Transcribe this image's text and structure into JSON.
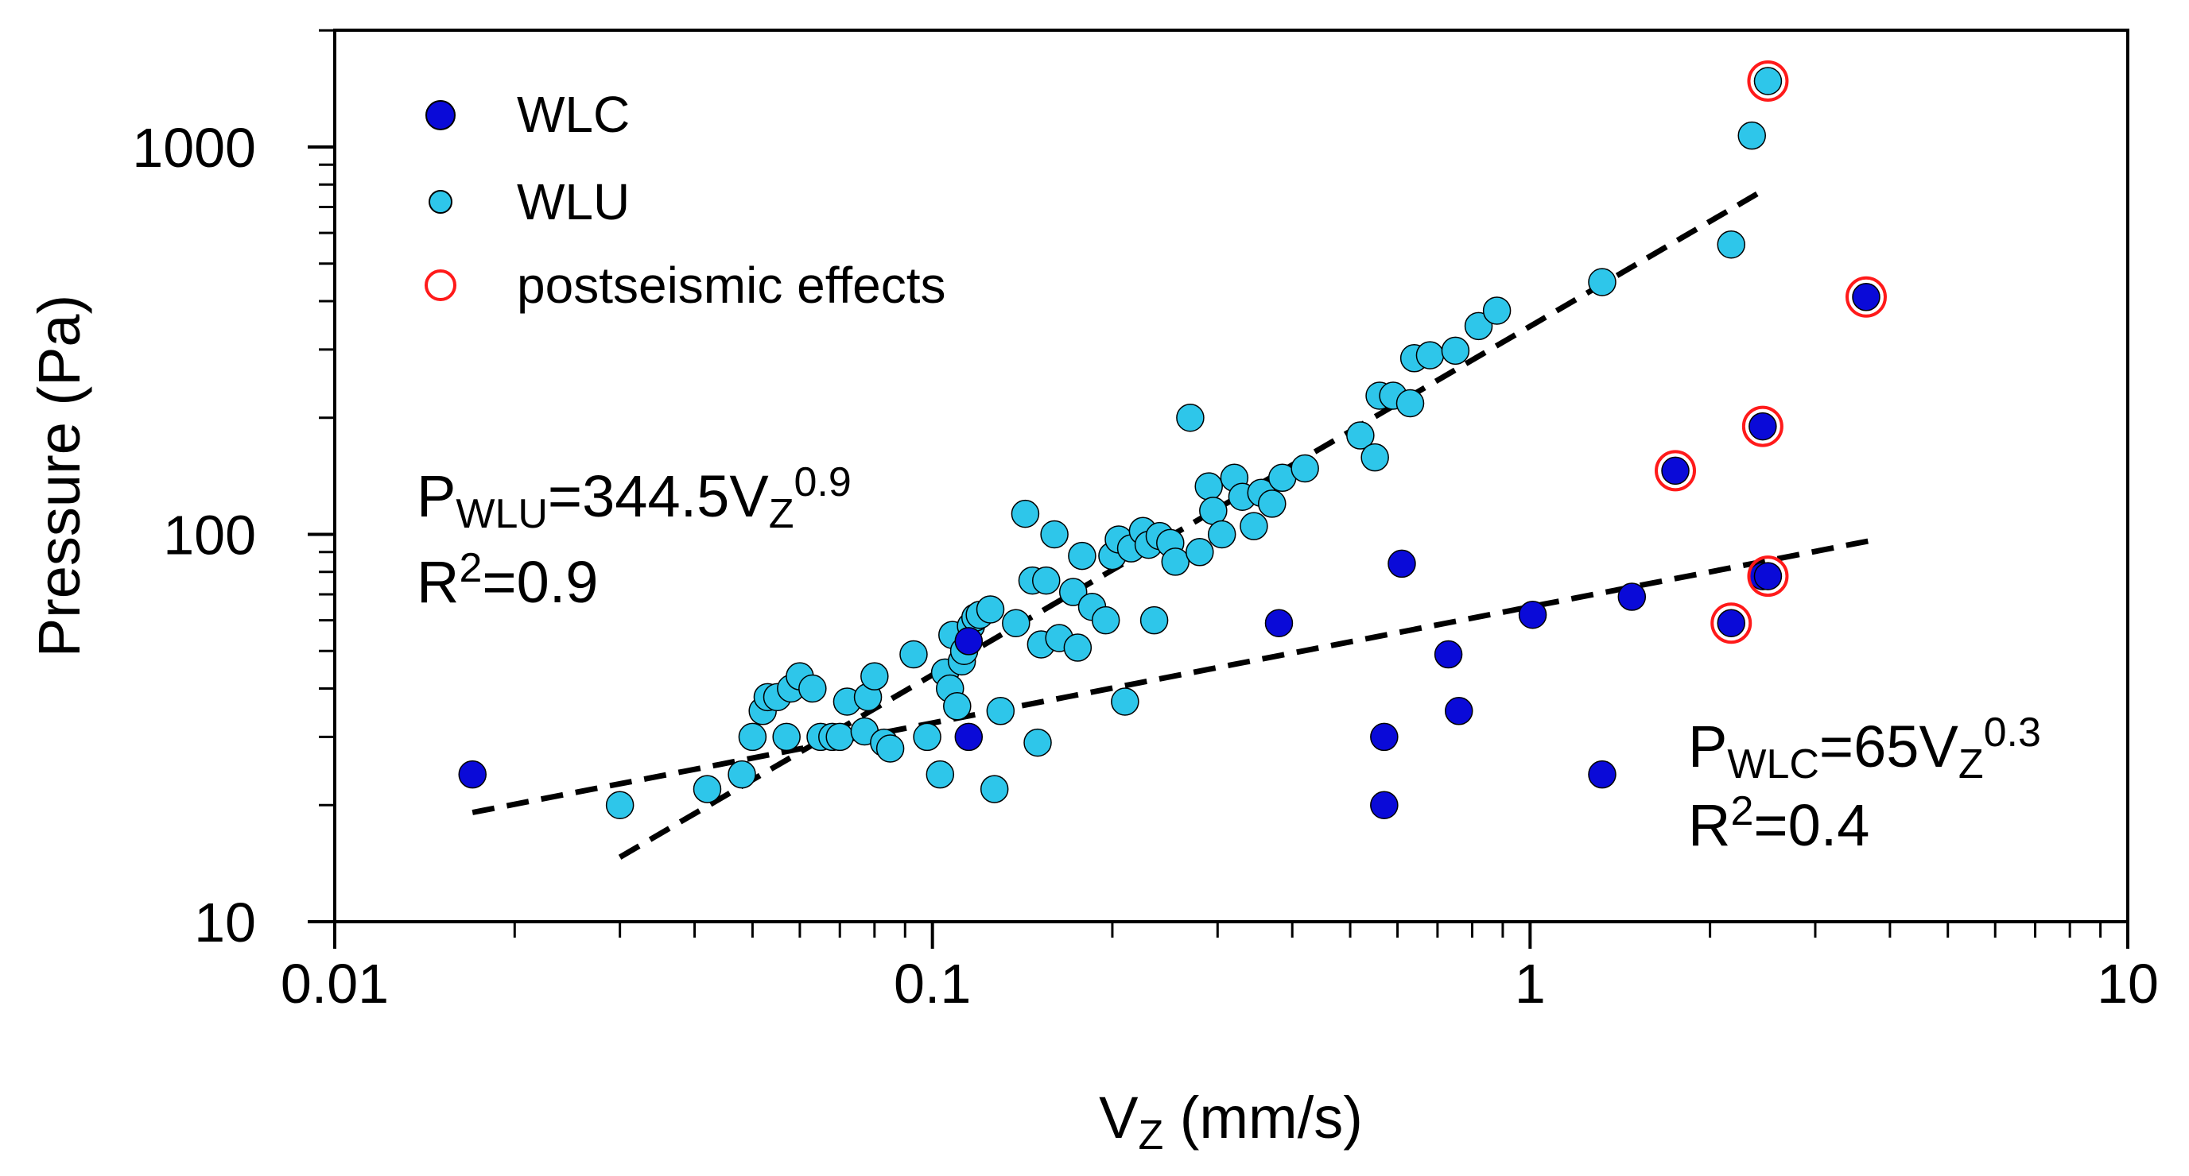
{
  "chart_data": {
    "type": "scatter",
    "x_scale": "log",
    "y_scale": "log",
    "xlim": [
      0.01,
      10
    ],
    "ylim": [
      10,
      2000
    ],
    "xlabel_main": "V",
    "xlabel_sub": "Z",
    "xlabel_unit": " (mm/s)",
    "ylabel": "Pressure (Pa)",
    "x_tick_labels": [
      {
        "value": 0.01,
        "label": "0.01"
      },
      {
        "value": 0.1,
        "label": "0.1"
      },
      {
        "value": 1,
        "label": "1"
      },
      {
        "value": 10,
        "label": "10"
      }
    ],
    "y_tick_labels": [
      {
        "value": 10,
        "label": "10"
      },
      {
        "value": 100,
        "label": "100"
      },
      {
        "value": 1000,
        "label": "1000"
      }
    ],
    "legend": {
      "position": "top-left",
      "entries": [
        {
          "label": "WLC",
          "marker": "filled-circle",
          "color": "#0a0ad8"
        },
        {
          "label": "WLU",
          "marker": "filled-circle",
          "color": "#2ec6ea"
        },
        {
          "label": "postseismic effects",
          "marker": "open-circle",
          "color": "#ff1a1a"
        }
      ]
    },
    "series": [
      {
        "name": "WLC",
        "color": "#0a0ad8",
        "points": [
          [
            0.017,
            24
          ],
          [
            0.115,
            53
          ],
          [
            0.115,
            30
          ],
          [
            0.38,
            59
          ],
          [
            0.57,
            30
          ],
          [
            0.57,
            20
          ],
          [
            0.61,
            84
          ],
          [
            0.73,
            49
          ],
          [
            0.76,
            35
          ],
          [
            1.01,
            62
          ],
          [
            1.32,
            24
          ],
          [
            1.48,
            69
          ],
          [
            1.75,
            146
          ],
          [
            2.17,
            59
          ],
          [
            2.45,
            78
          ],
          [
            2.5,
            78
          ],
          [
            2.45,
            190
          ],
          [
            3.65,
            410
          ]
        ]
      },
      {
        "name": "WLU",
        "color": "#2ec6ea",
        "points": [
          [
            0.03,
            20
          ],
          [
            0.042,
            22
          ],
          [
            0.048,
            24
          ],
          [
            0.05,
            30
          ],
          [
            0.052,
            35
          ],
          [
            0.053,
            38
          ],
          [
            0.055,
            38
          ],
          [
            0.057,
            30
          ],
          [
            0.058,
            40
          ],
          [
            0.06,
            43
          ],
          [
            0.063,
            40
          ],
          [
            0.065,
            30
          ],
          [
            0.068,
            30
          ],
          [
            0.07,
            30
          ],
          [
            0.072,
            37
          ],
          [
            0.077,
            31
          ],
          [
            0.078,
            38
          ],
          [
            0.08,
            43
          ],
          [
            0.083,
            29
          ],
          [
            0.085,
            28
          ],
          [
            0.093,
            49
          ],
          [
            0.098,
            30
          ],
          [
            0.103,
            24
          ],
          [
            0.105,
            44
          ],
          [
            0.107,
            40
          ],
          [
            0.108,
            55
          ],
          [
            0.11,
            36
          ],
          [
            0.112,
            47
          ],
          [
            0.113,
            50
          ],
          [
            0.116,
            58
          ],
          [
            0.118,
            61
          ],
          [
            0.12,
            62
          ],
          [
            0.125,
            64
          ],
          [
            0.127,
            22
          ],
          [
            0.13,
            35
          ],
          [
            0.138,
            59
          ],
          [
            0.143,
            113
          ],
          [
            0.147,
            76
          ],
          [
            0.15,
            29
          ],
          [
            0.152,
            52
          ],
          [
            0.155,
            76
          ],
          [
            0.16,
            100
          ],
          [
            0.163,
            54
          ],
          [
            0.172,
            71
          ],
          [
            0.175,
            51
          ],
          [
            0.178,
            88
          ],
          [
            0.185,
            65
          ],
          [
            0.195,
            60
          ],
          [
            0.2,
            88
          ],
          [
            0.205,
            97
          ],
          [
            0.21,
            37
          ],
          [
            0.215,
            92
          ],
          [
            0.225,
            102
          ],
          [
            0.23,
            94
          ],
          [
            0.235,
            60
          ],
          [
            0.24,
            99
          ],
          [
            0.25,
            95
          ],
          [
            0.255,
            85
          ],
          [
            0.27,
            200
          ],
          [
            0.28,
            90
          ],
          [
            0.29,
            133
          ],
          [
            0.295,
            115
          ],
          [
            0.305,
            100
          ],
          [
            0.32,
            140
          ],
          [
            0.33,
            125
          ],
          [
            0.345,
            105
          ],
          [
            0.355,
            128
          ],
          [
            0.37,
            120
          ],
          [
            0.385,
            140
          ],
          [
            0.42,
            148
          ],
          [
            0.52,
            180
          ],
          [
            0.55,
            158
          ],
          [
            0.56,
            228
          ],
          [
            0.59,
            228
          ],
          [
            0.63,
            218
          ],
          [
            0.64,
            285
          ],
          [
            0.68,
            290
          ],
          [
            0.75,
            298
          ],
          [
            0.82,
            345
          ],
          [
            0.88,
            378
          ],
          [
            1.32,
            448
          ],
          [
            2.17,
            560
          ],
          [
            2.35,
            1070
          ],
          [
            2.5,
            1480
          ]
        ]
      }
    ],
    "postseismic_points": [
      [
        1.75,
        146
      ],
      [
        2.17,
        59
      ],
      [
        2.5,
        78
      ],
      [
        2.45,
        190
      ],
      [
        3.65,
        410
      ],
      [
        2.5,
        1480
      ]
    ],
    "fits": [
      {
        "name": "WLU fit",
        "equation_base": "P",
        "equation_sub": "WLU",
        "equation_mid": "=344.5V",
        "equation_vsub": "Z",
        "equation_exp": "0.9",
        "r2_label": "R",
        "r2_sup": "2",
        "r2_value": "=0.9",
        "a": 344.5,
        "b": 0.9,
        "x_range": [
          0.03,
          2.5
        ]
      },
      {
        "name": "WLC fit",
        "equation_base": "P",
        "equation_sub": "WLC",
        "equation_mid": "=65V",
        "equation_vsub": "Z",
        "equation_exp": "0.3",
        "r2_label": "R",
        "r2_sup": "2",
        "r2_value": "=0.4",
        "a": 65,
        "b": 0.3,
        "x_range": [
          0.017,
          3.8
        ]
      }
    ]
  }
}
